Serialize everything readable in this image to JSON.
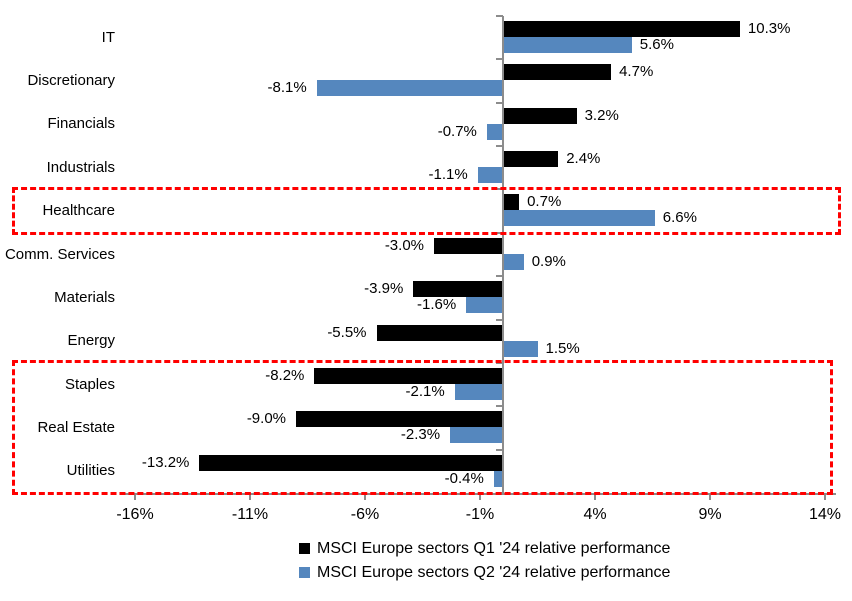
{
  "chart_data": {
    "type": "bar",
    "orientation": "horizontal",
    "title": "",
    "categories": [
      "IT",
      "Discretionary",
      "Financials",
      "Industrials",
      "Healthcare",
      "Comm. Services",
      "Materials",
      "Energy",
      "Staples",
      "Real Estate",
      "Utilities"
    ],
    "series": [
      {
        "name": "MSCI Europe sectors Q1 '24 relative performance",
        "color": "#000000",
        "values": [
          10.3,
          4.7,
          3.2,
          2.4,
          0.7,
          -3.0,
          -3.9,
          -5.5,
          -8.2,
          -9.0,
          -13.2
        ],
        "labels": [
          "10.3%",
          "4.7%",
          "3.2%",
          "2.4%",
          "0.7%",
          "-3.0%",
          "-3.9%",
          "-5.5%",
          "-8.2%",
          "-9.0%",
          "-13.2%"
        ]
      },
      {
        "name": "MSCI Europe sectors Q2 '24 relative performance",
        "color": "#5587BE",
        "values": [
          5.6,
          -8.1,
          -0.7,
          -1.1,
          6.6,
          0.9,
          -1.6,
          1.5,
          -2.1,
          -2.3,
          -0.4
        ],
        "labels": [
          "5.6%",
          "-8.1%",
          "-0.7%",
          "-1.1%",
          "6.6%",
          "0.9%",
          "-1.6%",
          "1.5%",
          "-2.1%",
          "-2.3%",
          "-0.4%"
        ]
      }
    ],
    "x_tick_labels": [
      "-16%",
      "-11%",
      "-6%",
      "-1%",
      "4%",
      "9%",
      "14%"
    ],
    "x_tick_values": [
      -16,
      -11,
      -6,
      -1,
      4,
      9,
      14
    ],
    "xlim": [
      -16.5,
      14.5
    ],
    "grid": false,
    "legend_position": "bottom",
    "data_labels": "outside-end",
    "axis_color": "#8C8C8C",
    "highlight_boxes": [
      {
        "categories": [
          "Healthcare"
        ],
        "start_index": 4,
        "end_index": 4,
        "color": "#FF0000",
        "style": "dashed"
      },
      {
        "categories": [
          "Staples",
          "Real Estate",
          "Utilities"
        ],
        "start_index": 8,
        "end_index": 10,
        "color": "#FF0000",
        "style": "dashed"
      }
    ]
  }
}
